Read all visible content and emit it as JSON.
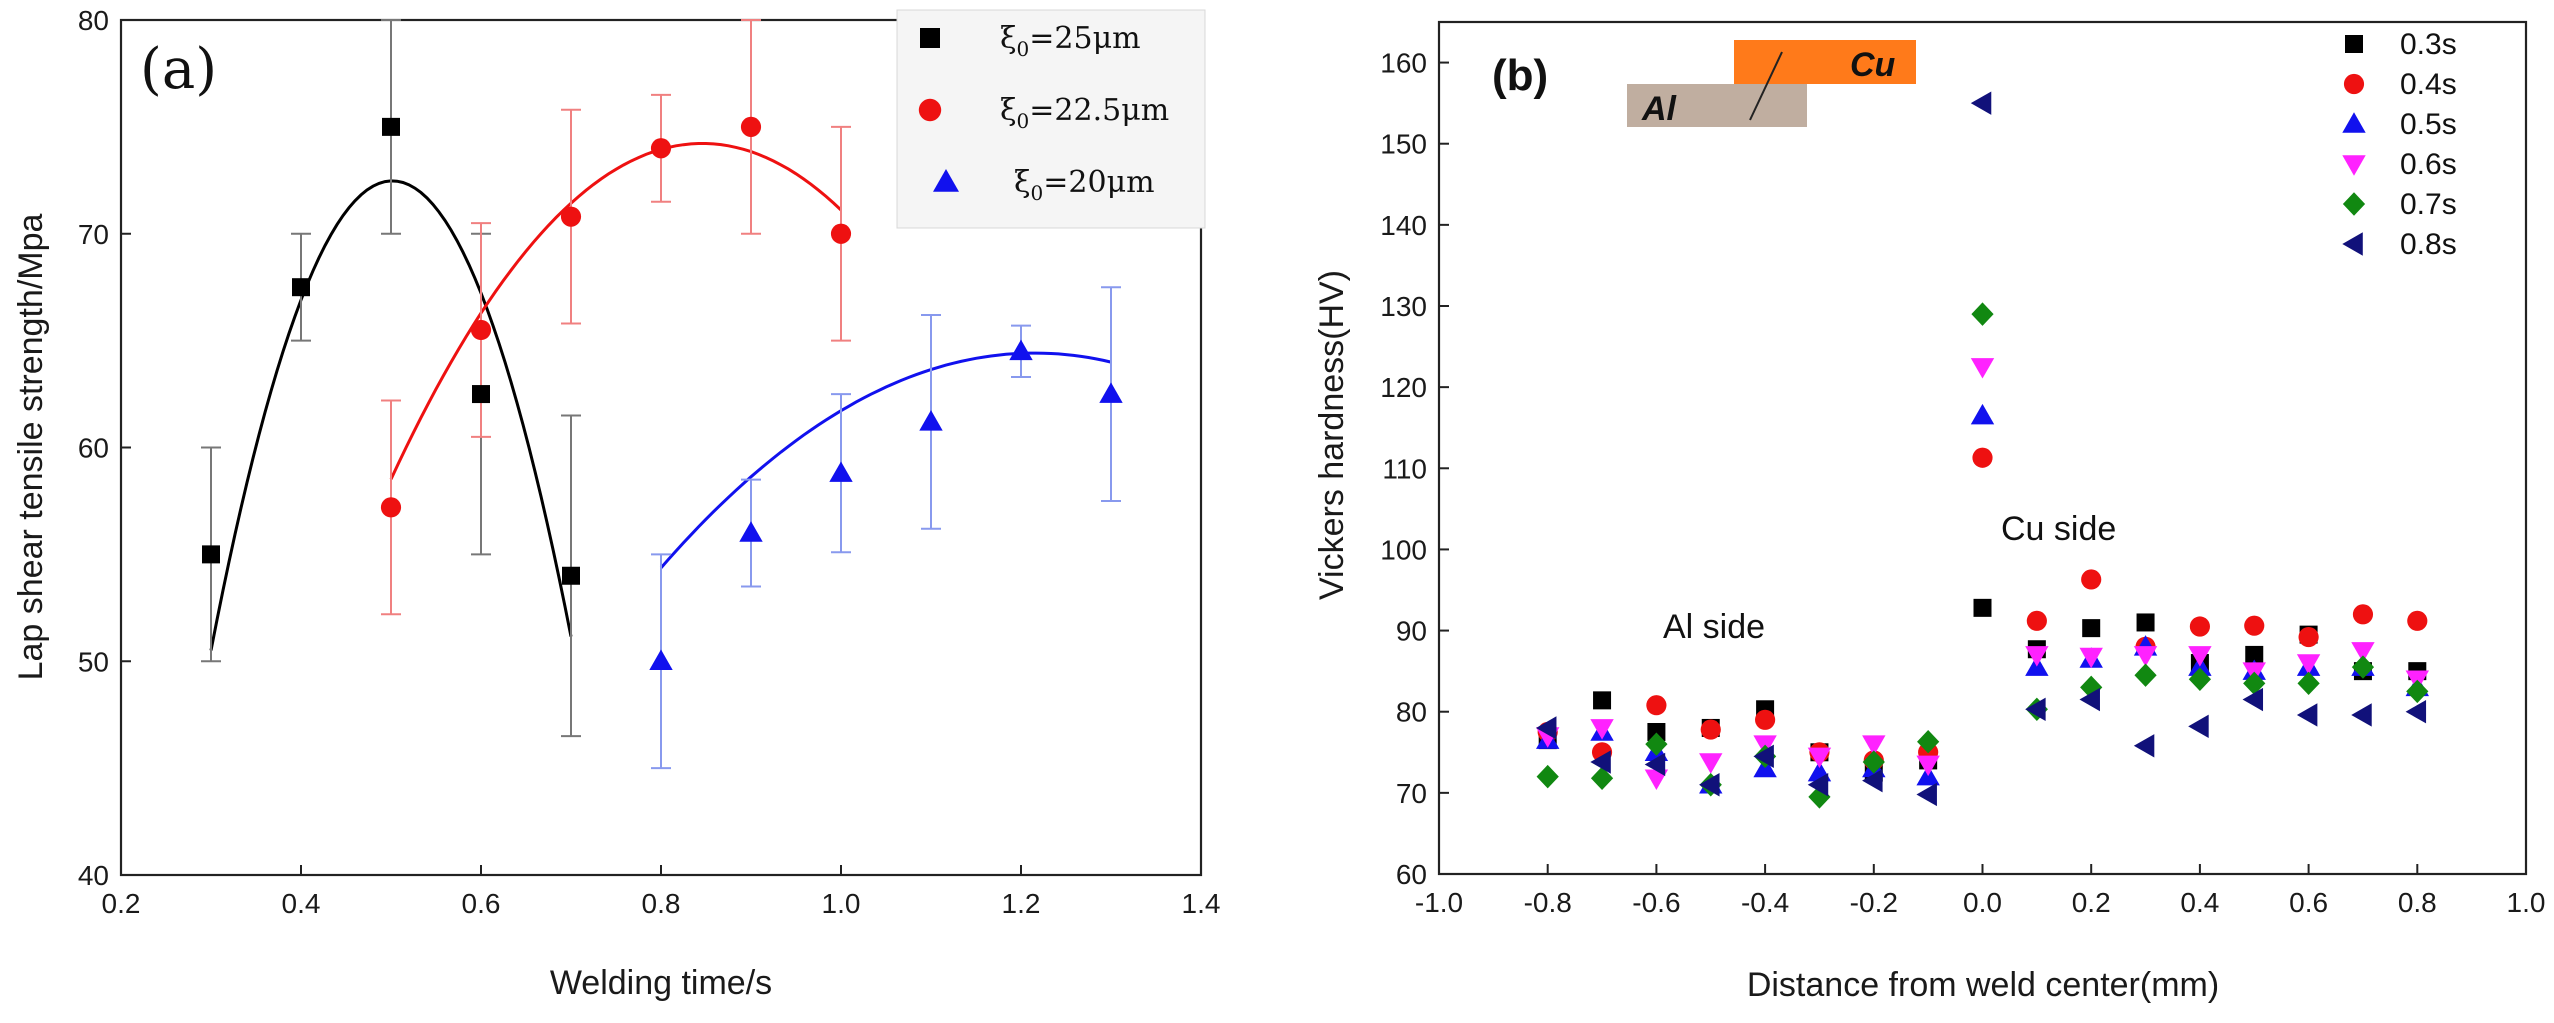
{
  "chart_data": [
    {
      "panel": "(a)",
      "type": "scatter",
      "xlabel": "Welding time/s",
      "ylabel": "Lap shear tensile strength/Mpa",
      "xlim": [
        0.2,
        1.4
      ],
      "ylim": [
        40,
        80
      ],
      "xticks": [
        "0.2",
        "0.4",
        "0.6",
        "0.8",
        "1.0",
        "1.2",
        "1.4"
      ],
      "yticks": [
        "40",
        "50",
        "60",
        "70",
        "80"
      ],
      "grid": false,
      "legend_position": "top-right",
      "series": [
        {
          "name": "ξ0=25μm",
          "legend_symbol": "ξ",
          "legend_sub": "0",
          "legend_rest": "=25μm",
          "color": "#000000",
          "errcolor": "#777777",
          "marker": "square",
          "x": [
            0.3,
            0.4,
            0.5,
            0.6,
            0.7
          ],
          "y": [
            55.0,
            67.5,
            75.0,
            62.5,
            54.0
          ],
          "err": [
            5.0,
            2.5,
            5.0,
            7.5,
            7.5
          ],
          "fit": [
            -541.07,
            542.68,
            -63.6
          ],
          "fit_range": [
            0.3,
            0.7
          ]
        },
        {
          "name": "ξ0=22.5μm",
          "legend_symbol": "ξ",
          "legend_sub": "0",
          "legend_rest": "=22.5μm",
          "color": "#ee1111",
          "errcolor": "#f08080",
          "marker": "circle",
          "x": [
            0.5,
            0.6,
            0.7,
            0.8,
            0.9,
            1.0
          ],
          "y": [
            57.2,
            65.5,
            70.8,
            74.0,
            75.0,
            70.0
          ],
          "err": [
            5.0,
            5.0,
            5.0,
            2.5,
            5.0,
            5.0
          ],
          "fit": [
            -131.25,
            222.06,
            -19.7
          ],
          "fit_range": [
            0.5,
            1.0
          ]
        },
        {
          "name": "ξ0=20μm",
          "legend_symbol": "ξ",
          "legend_sub": "0",
          "legend_rest": "=20μm",
          "color": "#1111ee",
          "errcolor": "#8899ee",
          "marker": "triangle",
          "x": [
            0.8,
            0.9,
            1.0,
            1.1,
            1.2,
            1.3
          ],
          "y": [
            50.0,
            56.0,
            58.8,
            61.2,
            64.5,
            62.5
          ],
          "err": [
            5.0,
            2.5,
            3.7,
            5.0,
            1.2,
            5.0
          ],
          "fit": [
            -58.33,
            141.75,
            -21.7
          ],
          "fit_range": [
            0.8,
            1.3
          ]
        }
      ]
    },
    {
      "panel": "(b)",
      "type": "scatter",
      "xlabel": "Distance from weld center(mm)",
      "ylabel": "Vickers hardness(HV)",
      "xlim": [
        -1.0,
        1.0
      ],
      "ylim": [
        60,
        165
      ],
      "xticks": [
        "-1.0",
        "-0.8",
        "-0.6",
        "-0.4",
        "-0.2",
        "0.0",
        "0.2",
        "0.4",
        "0.6",
        "0.8",
        "1.0"
      ],
      "yticks": [
        "60",
        "70",
        "80",
        "90",
        "100",
        "110",
        "120",
        "130",
        "140",
        "150",
        "160"
      ],
      "grid": false,
      "legend_position": "top-right",
      "annotations": [
        "Al side",
        "Cu side"
      ],
      "inset_labels": [
        "Al",
        "Cu"
      ],
      "x": [
        -0.8,
        -0.7,
        -0.6,
        -0.5,
        -0.4,
        -0.3,
        -0.2,
        -0.1,
        0.0,
        0.1,
        0.2,
        0.3,
        0.4,
        0.5,
        0.6,
        0.7,
        0.8
      ],
      "series": [
        {
          "name": "0.3s",
          "color": "#000000",
          "marker": "square",
          "y": [
            76.5,
            81.4,
            77.5,
            78.0,
            80.3,
            75.0,
            72.5,
            74.0,
            92.8,
            87.7,
            90.3,
            91.0,
            86.0,
            87.0,
            89.5,
            85.0,
            85.0
          ]
        },
        {
          "name": "0.4s",
          "color": "#ee1111",
          "marker": "circle",
          "y": [
            77.5,
            75.0,
            80.8,
            77.8,
            79.0,
            75.0,
            74.0,
            75.0,
            111.3,
            91.2,
            96.3,
            88.0,
            90.5,
            90.6,
            89.2,
            92.0,
            91.2
          ]
        },
        {
          "name": "0.5s",
          "color": "#1111ee",
          "marker": "triangle",
          "y": [
            76.5,
            77.5,
            75.0,
            71.0,
            73.0,
            72.5,
            73.0,
            72.0,
            116.5,
            85.5,
            86.5,
            88.0,
            85.5,
            85.0,
            85.5,
            85.5,
            83.0
          ]
        },
        {
          "name": "0.6s",
          "color": "#ff22ff",
          "marker": "triangle-down",
          "y": [
            77.0,
            78.0,
            71.8,
            73.8,
            76.0,
            74.5,
            76.0,
            73.5,
            122.5,
            87.0,
            86.8,
            87.0,
            87.0,
            85.0,
            86.0,
            87.5,
            84.0
          ]
        },
        {
          "name": "0.7s",
          "color": "#118811",
          "marker": "diamond",
          "y": [
            72.0,
            71.8,
            76.0,
            71.0,
            74.5,
            69.5,
            73.8,
            76.3,
            129.0,
            80.3,
            83.0,
            84.5,
            84.0,
            83.5,
            83.5,
            85.5,
            82.5
          ]
        },
        {
          "name": "0.8s",
          "color": "#11117a",
          "marker": "triangle-left",
          "y": [
            78.0,
            73.8,
            73.5,
            71.0,
            74.5,
            71.0,
            71.5,
            69.8,
            155.0,
            80.3,
            81.5,
            75.8,
            78.2,
            81.5,
            79.6,
            79.6,
            80.0
          ]
        }
      ]
    }
  ],
  "colors": {
    "al_bar": "#c0aea0",
    "cu_bar": "#ff7a1a"
  }
}
